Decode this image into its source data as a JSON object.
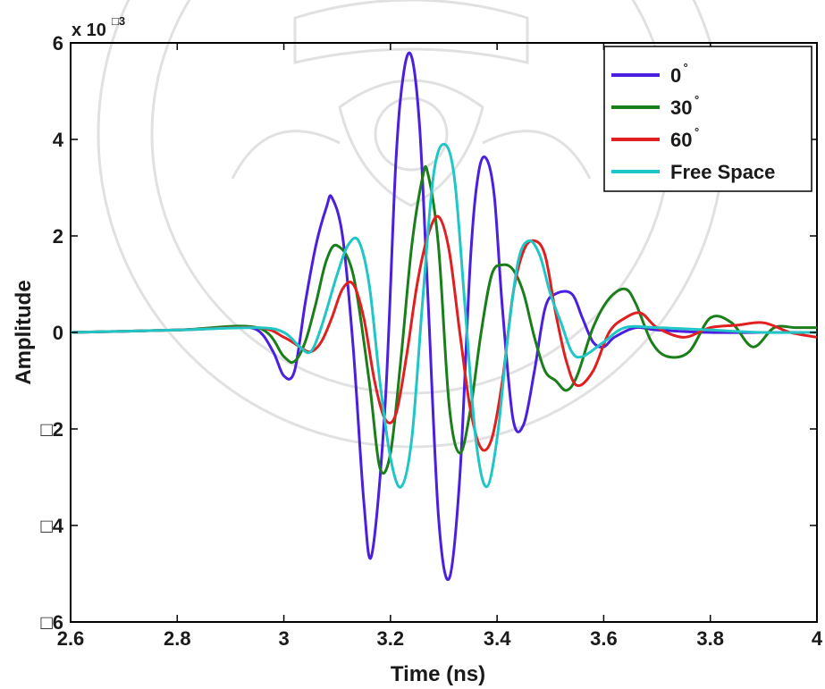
{
  "chart_data": {
    "type": "line",
    "xlabel": "Time (ns)",
    "ylabel": "Amplitude",
    "y_multiplier": {
      "base": "x 10",
      "exponent": "□3"
    },
    "xlim": [
      2.6,
      4.0
    ],
    "ylim": [
      -6,
      6
    ],
    "x_ticks": [
      2.6,
      2.8,
      3.0,
      3.2,
      3.4,
      3.6,
      3.8,
      4.0
    ],
    "x_tick_labels": [
      "2.6",
      "2.8",
      "3",
      "3.2",
      "3.4",
      "3.6",
      "3.8",
      "4"
    ],
    "y_ticks": [
      -6,
      -4,
      -2,
      0,
      2,
      4,
      6
    ],
    "y_tick_labels": [
      "□6",
      "□4",
      "□2",
      "0",
      "2",
      "4",
      "6"
    ],
    "grid": false,
    "legend_position": "top-right",
    "series": [
      {
        "name": "0",
        "name_superscript": "°",
        "color": "#4b1fe0",
        "x": [
          2.6,
          2.8,
          2.9,
          2.95,
          2.98,
          3.0,
          3.02,
          3.04,
          3.06,
          3.08,
          3.09,
          3.11,
          3.13,
          3.15,
          3.165,
          3.19,
          3.21,
          3.225,
          3.24,
          3.255,
          3.27,
          3.29,
          3.31,
          3.33,
          3.35,
          3.365,
          3.38,
          3.395,
          3.41,
          3.43,
          3.45,
          3.47,
          3.49,
          3.51,
          3.54,
          3.56,
          3.58,
          3.6,
          3.62,
          3.66,
          3.7,
          3.8,
          3.9,
          4.0
        ],
        "y": [
          0.0,
          0.05,
          0.1,
          0.05,
          -0.4,
          -0.9,
          -0.8,
          0.6,
          1.8,
          2.6,
          2.8,
          2.0,
          -0.3,
          -3.5,
          -4.6,
          -1.5,
          3.5,
          5.4,
          5.7,
          4.2,
          0.8,
          -3.8,
          -5.1,
          -3.0,
          1.5,
          3.3,
          3.6,
          2.8,
          0.5,
          -1.8,
          -1.9,
          -0.8,
          0.5,
          0.8,
          0.8,
          0.3,
          -0.2,
          -0.3,
          -0.1,
          0.1,
          0.05,
          0.0,
          0.0,
          0.0
        ]
      },
      {
        "name": "30",
        "name_superscript": "°",
        "color": "#1a7e1a",
        "x": [
          2.6,
          2.8,
          2.95,
          3.0,
          3.02,
          3.04,
          3.06,
          3.08,
          3.1,
          3.13,
          3.16,
          3.18,
          3.2,
          3.22,
          3.24,
          3.26,
          3.27,
          3.29,
          3.31,
          3.33,
          3.35,
          3.37,
          3.39,
          3.41,
          3.43,
          3.45,
          3.47,
          3.49,
          3.51,
          3.53,
          3.55,
          3.58,
          3.61,
          3.64,
          3.66,
          3.69,
          3.72,
          3.76,
          3.8,
          3.84,
          3.88,
          3.92,
          3.96,
          4.0
        ],
        "y": [
          0.0,
          0.05,
          0.1,
          -0.5,
          -0.6,
          -0.2,
          0.6,
          1.5,
          1.8,
          1.2,
          -1.0,
          -2.8,
          -2.5,
          -0.5,
          1.8,
          3.2,
          3.3,
          1.8,
          -1.5,
          -2.5,
          -1.6,
          0.0,
          1.2,
          1.4,
          1.3,
          0.8,
          -0.1,
          -0.8,
          -1.0,
          -1.2,
          -0.9,
          0.1,
          0.7,
          0.9,
          0.6,
          -0.2,
          -0.5,
          -0.4,
          0.3,
          0.2,
          -0.3,
          0.1,
          0.1,
          0.1
        ]
      },
      {
        "name": "60",
        "name_superscript": "°",
        "color": "#e02020",
        "x": [
          2.6,
          2.8,
          2.95,
          3.0,
          3.03,
          3.05,
          3.07,
          3.09,
          3.11,
          3.13,
          3.15,
          3.17,
          3.19,
          3.21,
          3.23,
          3.25,
          3.27,
          3.29,
          3.31,
          3.33,
          3.35,
          3.37,
          3.39,
          3.41,
          3.43,
          3.45,
          3.47,
          3.49,
          3.51,
          3.53,
          3.55,
          3.58,
          3.61,
          3.64,
          3.67,
          3.7,
          3.75,
          3.8,
          3.85,
          3.9,
          3.95,
          4.0
        ],
        "y": [
          0.0,
          0.05,
          0.1,
          -0.1,
          -0.3,
          -0.4,
          -0.2,
          0.3,
          0.9,
          1.0,
          0.3,
          -1.0,
          -1.8,
          -1.7,
          -0.5,
          1.0,
          2.0,
          2.4,
          1.7,
          0.0,
          -1.6,
          -2.4,
          -2.2,
          -1.0,
          0.8,
          1.7,
          1.9,
          1.6,
          0.4,
          -0.6,
          -1.1,
          -0.8,
          0.0,
          0.3,
          0.4,
          0.1,
          -0.1,
          0.1,
          0.15,
          0.2,
          0.0,
          -0.1
        ]
      },
      {
        "name": "Free Space",
        "name_superscript": "",
        "color": "#20c6c6",
        "x": [
          2.6,
          2.8,
          2.95,
          3.0,
          3.03,
          3.05,
          3.07,
          3.1,
          3.12,
          3.14,
          3.16,
          3.18,
          3.2,
          3.22,
          3.24,
          3.26,
          3.28,
          3.3,
          3.32,
          3.34,
          3.36,
          3.38,
          3.4,
          3.42,
          3.44,
          3.46,
          3.48,
          3.5,
          3.52,
          3.54,
          3.56,
          3.6,
          3.64,
          3.7,
          3.8,
          3.9,
          4.0
        ],
        "y": [
          0.0,
          0.05,
          0.1,
          0.0,
          -0.3,
          -0.4,
          0.1,
          1.2,
          1.8,
          1.9,
          1.0,
          -1.0,
          -2.6,
          -3.2,
          -2.2,
          0.6,
          3.2,
          3.9,
          3.2,
          0.5,
          -2.2,
          -3.2,
          -2.2,
          -0.1,
          1.5,
          1.9,
          1.6,
          0.8,
          0.2,
          -0.4,
          -0.5,
          -0.2,
          0.1,
          0.1,
          0.05,
          0.0,
          0.0
        ]
      }
    ]
  }
}
